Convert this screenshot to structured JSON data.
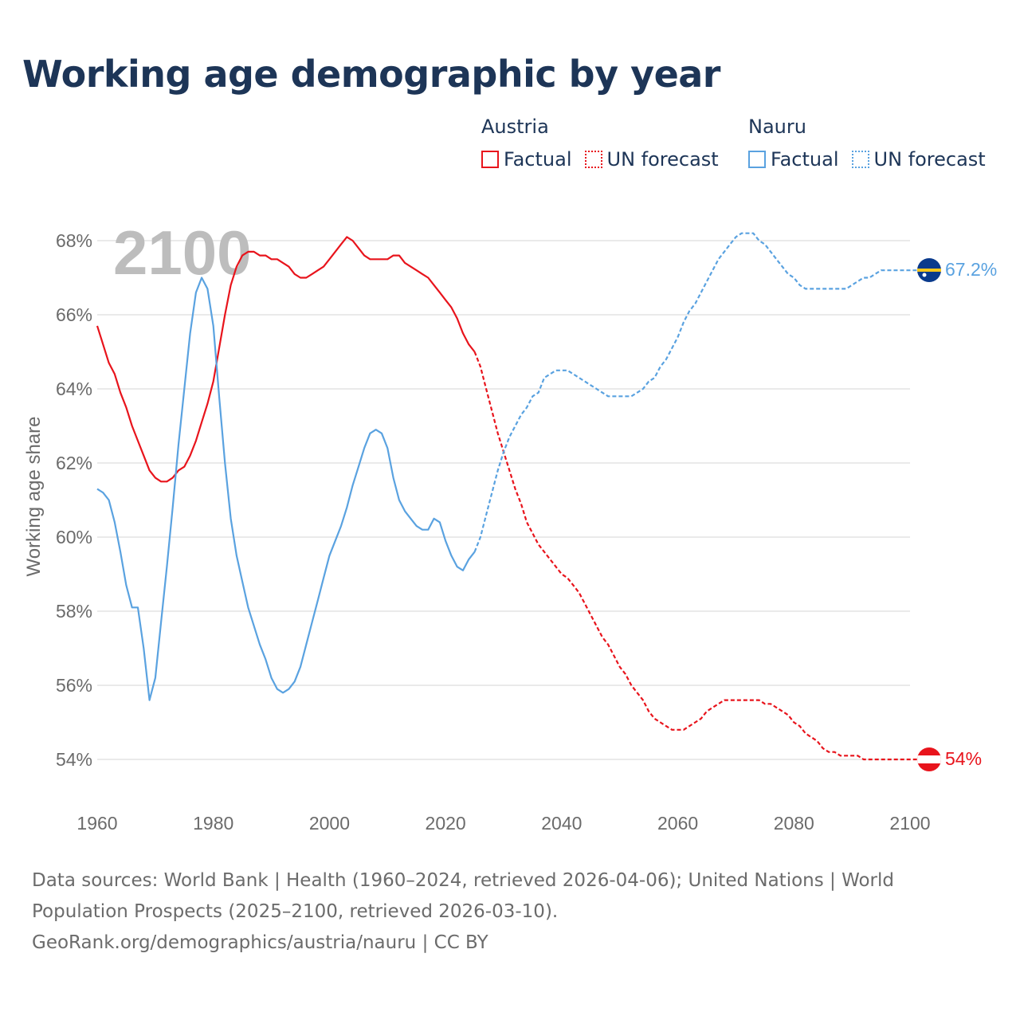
{
  "title": "Working age demographic by year",
  "legend": {
    "groups": [
      {
        "name": "Austria",
        "color": "#e8141c",
        "factual_label": "Factual",
        "forecast_label": "UN forecast"
      },
      {
        "name": "Nauru",
        "color": "#5aa2e0",
        "factual_label": "Factual",
        "forecast_label": "UN forecast"
      }
    ]
  },
  "year_watermark": "2100",
  "end_labels": {
    "nauru": "67.2%",
    "austria": "54%"
  },
  "flags": {
    "nauru": "nauru-flag-icon",
    "austria": "austria-flag-icon"
  },
  "footer": {
    "line1": "Data sources: World Bank | Health (1960–2024, retrieved 2026-04-06); United Nations | World",
    "line2": "Population Prospects (2025–2100, retrieved 2026-03-10).",
    "line3": "GeoRank.org/demographics/austria/nauru | CC BY"
  },
  "chart_data": {
    "type": "line",
    "title": "Working age demographic by year",
    "xlabel": "",
    "ylabel": "Working age share",
    "xlim": [
      1960,
      2103
    ],
    "ylim": [
      53,
      69
    ],
    "x_ticks": [
      1960,
      1980,
      2000,
      2020,
      2040,
      2060,
      2080,
      2100
    ],
    "x_tick_labels": [
      "1960",
      "1980",
      "2000",
      "2020",
      "2040",
      "2060",
      "2080",
      "2100"
    ],
    "y_ticks": [
      54,
      56,
      58,
      60,
      62,
      64,
      66,
      68
    ],
    "y_tick_labels": [
      "54%",
      "56%",
      "58%",
      "60%",
      "62%",
      "64%",
      "66%",
      "68%"
    ],
    "grid": true,
    "legend_position": "top-right",
    "series": [
      {
        "name": "Austria",
        "segment": "Factual",
        "style": "solid",
        "color": "#e8141c",
        "x": [
          1960,
          1962,
          1963,
          1964,
          1965,
          1966,
          1967,
          1968,
          1969,
          1970,
          1971,
          1972,
          1973,
          1974,
          1975,
          1976,
          1977,
          1978,
          1979,
          1980,
          1981,
          1982,
          1983,
          1984,
          1985,
          1986,
          1987,
          1988,
          1989,
          1990,
          1991,
          1992,
          1993,
          1994,
          1995,
          1996,
          1997,
          1998,
          1999,
          2000,
          2001,
          2002,
          2003,
          2004,
          2005,
          2006,
          2007,
          2008,
          2009,
          2010,
          2011,
          2012,
          2013,
          2014,
          2015,
          2016,
          2017,
          2018,
          2019,
          2020,
          2021,
          2022,
          2023,
          2024,
          2025
        ],
        "y": [
          65.7,
          64.7,
          64.4,
          63.9,
          63.5,
          63.0,
          62.6,
          62.2,
          61.8,
          61.6,
          61.5,
          61.5,
          61.6,
          61.8,
          61.9,
          62.2,
          62.6,
          63.1,
          63.6,
          64.2,
          65.1,
          66.0,
          66.8,
          67.3,
          67.6,
          67.7,
          67.7,
          67.6,
          67.6,
          67.5,
          67.5,
          67.4,
          67.3,
          67.1,
          67.0,
          67.0,
          67.1,
          67.2,
          67.3,
          67.5,
          67.7,
          67.9,
          68.1,
          68.0,
          67.8,
          67.6,
          67.5,
          67.5,
          67.5,
          67.5,
          67.6,
          67.6,
          67.4,
          67.3,
          67.2,
          67.1,
          67.0,
          66.8,
          66.6,
          66.4,
          66.2,
          65.9,
          65.5,
          65.2,
          65.0
        ]
      },
      {
        "name": "Austria",
        "segment": "UN forecast",
        "style": "dashed",
        "color": "#e8141c",
        "x": [
          2025,
          2026,
          2027,
          2028,
          2029,
          2030,
          2031,
          2032,
          2033,
          2034,
          2035,
          2036,
          2037,
          2038,
          2039,
          2040,
          2041,
          2042,
          2043,
          2044,
          2045,
          2046,
          2047,
          2048,
          2049,
          2050,
          2051,
          2052,
          2053,
          2054,
          2055,
          2056,
          2057,
          2058,
          2059,
          2060,
          2061,
          2062,
          2063,
          2064,
          2065,
          2066,
          2067,
          2068,
          2069,
          2070,
          2071,
          2072,
          2073,
          2074,
          2075,
          2076,
          2077,
          2078,
          2079,
          2080,
          2081,
          2082,
          2083,
          2084,
          2085,
          2086,
          2087,
          2088,
          2089,
          2090,
          2091,
          2092,
          2093,
          2094,
          2095,
          2096,
          2097,
          2098,
          2099,
          2100,
          2103
        ],
        "y": [
          65.0,
          64.6,
          64.0,
          63.4,
          62.8,
          62.3,
          61.8,
          61.3,
          60.9,
          60.4,
          60.1,
          59.8,
          59.6,
          59.4,
          59.2,
          59.0,
          58.9,
          58.7,
          58.5,
          58.2,
          57.9,
          57.6,
          57.3,
          57.1,
          56.8,
          56.5,
          56.3,
          56.0,
          55.8,
          55.6,
          55.3,
          55.1,
          55.0,
          54.9,
          54.8,
          54.8,
          54.8,
          54.9,
          55.0,
          55.1,
          55.3,
          55.4,
          55.5,
          55.6,
          55.6,
          55.6,
          55.6,
          55.6,
          55.6,
          55.6,
          55.5,
          55.5,
          55.4,
          55.3,
          55.2,
          55.0,
          54.9,
          54.7,
          54.6,
          54.5,
          54.3,
          54.2,
          54.2,
          54.1,
          54.1,
          54.1,
          54.1,
          54.0,
          54.0,
          54.0,
          54.0,
          54.0,
          54.0,
          54.0,
          54.0,
          54.0,
          54.0
        ]
      },
      {
        "name": "Nauru",
        "segment": "Factual",
        "style": "solid",
        "color": "#5aa2e0",
        "x": [
          1960,
          1961,
          1962,
          1963,
          1964,
          1965,
          1966,
          1967,
          1968,
          1969,
          1970,
          1971,
          1972,
          1973,
          1974,
          1975,
          1976,
          1977,
          1978,
          1979,
          1980,
          1981,
          1982,
          1983,
          1984,
          1985,
          1986,
          1987,
          1988,
          1989,
          1990,
          1991,
          1992,
          1993,
          1994,
          1995,
          1996,
          1997,
          1998,
          1999,
          2000,
          2001,
          2002,
          2003,
          2004,
          2005,
          2006,
          2007,
          2008,
          2009,
          2010,
          2011,
          2012,
          2013,
          2014,
          2015,
          2016,
          2017,
          2018,
          2019,
          2020,
          2021,
          2022,
          2023,
          2024,
          2025
        ],
        "y": [
          61.3,
          61.2,
          61.0,
          60.4,
          59.6,
          58.7,
          58.1,
          58.1,
          57.0,
          55.6,
          56.2,
          57.7,
          59.2,
          60.8,
          62.5,
          64.0,
          65.5,
          66.6,
          67.0,
          66.7,
          65.7,
          63.8,
          62.0,
          60.5,
          59.5,
          58.8,
          58.1,
          57.6,
          57.1,
          56.7,
          56.2,
          55.9,
          55.8,
          55.9,
          56.1,
          56.5,
          57.1,
          57.7,
          58.3,
          58.9,
          59.5,
          59.9,
          60.3,
          60.8,
          61.4,
          61.9,
          62.4,
          62.8,
          62.9,
          62.8,
          62.4,
          61.6,
          61.0,
          60.7,
          60.5,
          60.3,
          60.2,
          60.2,
          60.5,
          60.4,
          59.9,
          59.5,
          59.2,
          59.1,
          59.4,
          59.6
        ]
      },
      {
        "name": "Nauru",
        "segment": "UN forecast",
        "style": "dashed",
        "color": "#5aa2e0",
        "x": [
          2025,
          2026,
          2027,
          2028,
          2029,
          2030,
          2031,
          2032,
          2033,
          2034,
          2035,
          2036,
          2037,
          2038,
          2039,
          2040,
          2041,
          2042,
          2043,
          2044,
          2045,
          2046,
          2047,
          2048,
          2049,
          2050,
          2051,
          2052,
          2053,
          2054,
          2055,
          2056,
          2057,
          2058,
          2059,
          2060,
          2061,
          2062,
          2063,
          2064,
          2065,
          2066,
          2067,
          2068,
          2069,
          2070,
          2071,
          2072,
          2073,
          2074,
          2075,
          2076,
          2077,
          2078,
          2079,
          2080,
          2081,
          2082,
          2083,
          2084,
          2085,
          2086,
          2087,
          2088,
          2089,
          2090,
          2091,
          2092,
          2093,
          2094,
          2095,
          2096,
          2097,
          2098,
          2099,
          2100,
          2103
        ],
        "y": [
          59.6,
          60.0,
          60.6,
          61.2,
          61.8,
          62.3,
          62.7,
          63.0,
          63.3,
          63.5,
          63.8,
          63.9,
          64.3,
          64.4,
          64.5,
          64.5,
          64.5,
          64.4,
          64.3,
          64.2,
          64.1,
          64.0,
          63.9,
          63.8,
          63.8,
          63.8,
          63.8,
          63.8,
          63.9,
          64.0,
          64.2,
          64.3,
          64.6,
          64.8,
          65.1,
          65.4,
          65.8,
          66.1,
          66.3,
          66.6,
          66.9,
          67.2,
          67.5,
          67.7,
          67.9,
          68.1,
          68.2,
          68.2,
          68.2,
          68.0,
          67.9,
          67.7,
          67.5,
          67.3,
          67.1,
          67.0,
          66.8,
          66.7,
          66.7,
          66.7,
          66.7,
          66.7,
          66.7,
          66.7,
          66.7,
          66.8,
          66.9,
          67.0,
          67.0,
          67.1,
          67.2,
          67.2,
          67.2,
          67.2,
          67.2,
          67.2,
          67.2
        ]
      }
    ]
  }
}
